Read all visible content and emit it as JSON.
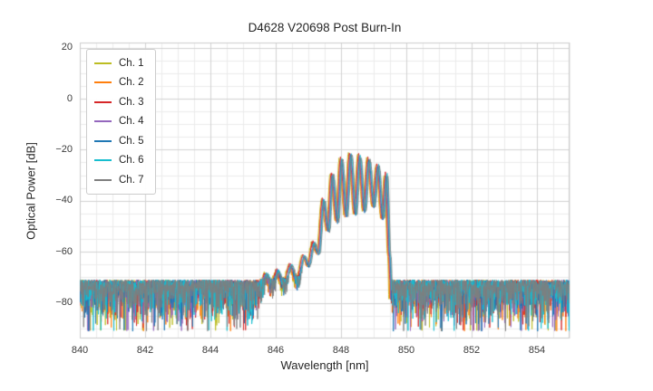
{
  "chart_data": {
    "type": "line",
    "title": "D4628 V20698 Post Burn-In",
    "xlabel": "Wavelength [nm]",
    "ylabel": "Optical Power [dB]",
    "xlim": [
      840,
      855
    ],
    "ylim": [
      -94,
      22
    ],
    "xticks": [
      840,
      842,
      844,
      846,
      848,
      850,
      852,
      854
    ],
    "yticks": [
      20,
      0,
      -20,
      -40,
      -60,
      -80
    ],
    "minor_x_step_nm": 0.5,
    "minor_y_step_db": 5,
    "grid": true,
    "legend_position": "upper-left",
    "series": [
      {
        "name": "Ch. 1",
        "color": "#bcbd22",
        "x_offset_nm": -0.055,
        "level_offset_db": 0.4
      },
      {
        "name": "Ch. 2",
        "color": "#ff7f0e",
        "x_offset_nm": -0.036,
        "level_offset_db": -0.2
      },
      {
        "name": "Ch. 3",
        "color": "#d62728",
        "x_offset_nm": -0.018,
        "level_offset_db": 0.7
      },
      {
        "name": "Ch. 4",
        "color": "#9467bd",
        "x_offset_nm": 0.0,
        "level_offset_db": 0.1
      },
      {
        "name": "Ch. 5",
        "color": "#1f77b4",
        "x_offset_nm": 0.018,
        "level_offset_db": -0.4
      },
      {
        "name": "Ch. 6",
        "color": "#17becf",
        "x_offset_nm": 0.036,
        "level_offset_db": 0.2
      },
      {
        "name": "Ch. 7",
        "color": "#7f7f7f",
        "x_offset_nm": 0.055,
        "level_offset_db": -0.1
      }
    ],
    "noise_floor": {
      "top_db": -71,
      "min_db": -93
    },
    "signal_envelope_nm_db": [
      [
        845.4,
        -95
      ],
      [
        845.55,
        -80
      ],
      [
        845.7,
        -71
      ],
      [
        845.88,
        -80
      ],
      [
        846.05,
        -69
      ],
      [
        846.25,
        -78
      ],
      [
        846.45,
        -66
      ],
      [
        846.65,
        -75
      ],
      [
        846.85,
        -62
      ],
      [
        847.0,
        -66
      ],
      [
        847.15,
        -57
      ],
      [
        847.3,
        -61
      ],
      [
        847.45,
        -40
      ],
      [
        847.6,
        -52
      ],
      [
        847.72,
        -30
      ],
      [
        847.88,
        -48
      ],
      [
        848.0,
        -24
      ],
      [
        848.15,
        -46
      ],
      [
        848.28,
        -22
      ],
      [
        848.43,
        -45
      ],
      [
        848.56,
        -22.5
      ],
      [
        848.71,
        -44
      ],
      [
        848.84,
        -24
      ],
      [
        848.99,
        -42
      ],
      [
        849.12,
        -26.5
      ],
      [
        849.27,
        -47
      ],
      [
        849.38,
        -30
      ],
      [
        849.48,
        -62
      ],
      [
        849.55,
        -95
      ]
    ],
    "colors": {
      "grid_minor": "#ebebeb",
      "grid_major": "#d2d2d2",
      "frame": "#cccccc",
      "background": "#ffffff"
    }
  }
}
